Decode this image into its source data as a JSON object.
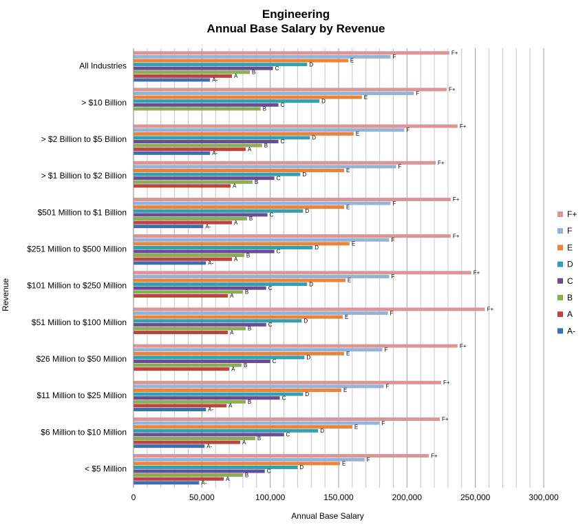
{
  "chart_data": {
    "type": "bar",
    "orientation": "horizontal",
    "title": [
      "Engineering",
      "Annual Base Salary by Revenue"
    ],
    "xlabel": "Annual Base Salary",
    "ylabel": "Revenue",
    "xlim": [
      0,
      300000
    ],
    "xticks": [
      "0",
      "50,000",
      "100,000",
      "150,000",
      "200,000",
      "250,000",
      "300,000"
    ],
    "grid": "vertical",
    "legend_position": "right",
    "categories": [
      "All Industries",
      "> $10 Billion",
      "> $2 Billion to $5 Billion",
      "> $1 Billion to $2 Billion",
      "$501 Million to $1 Billion",
      "$251 Million to $500 Million",
      "$101 Million to $250 Million",
      "$51 Million to $100 Million",
      "$26 Million to $50 Million",
      "$11 Million to $25 Million",
      "$6 Million to $10 Million",
      "< $5 Million"
    ],
    "series": [
      {
        "name": "F+",
        "color": "#d99694",
        "values": [
          231000,
          229000,
          237000,
          221000,
          232000,
          232000,
          247000,
          257000,
          237000,
          225000,
          224000,
          216000
        ]
      },
      {
        "name": "F",
        "color": "#95b3d7",
        "values": [
          188000,
          205000,
          198000,
          192000,
          188000,
          187000,
          187000,
          186000,
          182000,
          183000,
          180000,
          169000
        ]
      },
      {
        "name": "E",
        "color": "#e9853a",
        "values": [
          157000,
          167000,
          161000,
          154000,
          154000,
          158000,
          155000,
          153000,
          154000,
          152000,
          160000,
          151000
        ]
      },
      {
        "name": "D",
        "color": "#31a0b0",
        "values": [
          127000,
          136000,
          129000,
          122000,
          124000,
          131000,
          127000,
          123000,
          125000,
          124000,
          135000,
          120000
        ]
      },
      {
        "name": "C",
        "color": "#6a4c93",
        "values": [
          102000,
          106000,
          106000,
          103000,
          98000,
          103000,
          97000,
          97000,
          100000,
          107000,
          110000,
          96000
        ]
      },
      {
        "name": "B",
        "color": "#8cad54",
        "values": [
          85000,
          93000,
          94000,
          87000,
          83000,
          81000,
          80000,
          82000,
          79000,
          82000,
          89000,
          80000
        ]
      },
      {
        "name": "A",
        "color": "#b94441",
        "values": [
          72000,
          null,
          82000,
          71000,
          72000,
          72000,
          69000,
          69000,
          70000,
          68000,
          78000,
          66000
        ]
      },
      {
        "name": "A-",
        "color": "#3f6ead",
        "values": [
          56000,
          null,
          56000,
          null,
          51000,
          53000,
          null,
          null,
          null,
          53000,
          52000,
          48000
        ]
      }
    ]
  }
}
